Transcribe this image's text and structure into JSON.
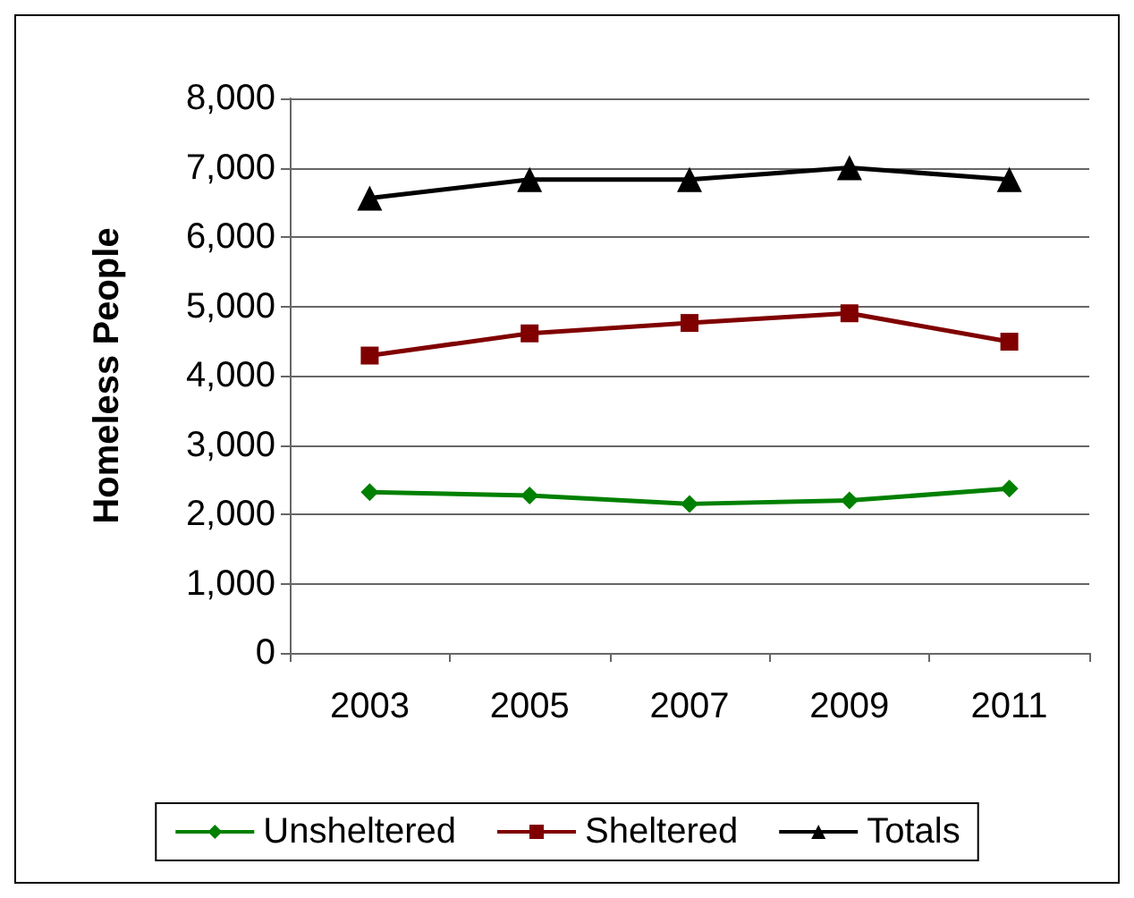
{
  "chart_data": {
    "type": "line",
    "ylabel": "Homeless People",
    "categories": [
      "2003",
      "2005",
      "2007",
      "2009",
      "2011"
    ],
    "series": [
      {
        "name": "Unsheltered",
        "color": "#008000",
        "marker": "diamond",
        "values": [
          2320,
          2270,
          2150,
          2200,
          2370
        ]
      },
      {
        "name": "Sheltered",
        "color": "#800000",
        "marker": "square",
        "values": [
          4290,
          4610,
          4760,
          4900,
          4490
        ]
      },
      {
        "name": "Totals",
        "color": "#000000",
        "marker": "triangle",
        "values": [
          6560,
          6830,
          6830,
          7000,
          6830
        ]
      }
    ],
    "ylim": [
      0,
      8000
    ],
    "yticks": [
      0,
      {
        "value": 1000,
        "label": "1,000"
      },
      {
        "value": 2000,
        "label": "2,000"
      },
      {
        "value": 3000,
        "label": "3,000"
      },
      {
        "value": 4000,
        "label": "4,000"
      },
      {
        "value": 5000,
        "label": "5,000"
      },
      {
        "value": 6000,
        "label": "6,000"
      },
      {
        "value": 7000,
        "label": "7,000"
      },
      {
        "value": 8000,
        "label": "8,000"
      }
    ],
    "grid": "y",
    "legend": "bottom"
  }
}
